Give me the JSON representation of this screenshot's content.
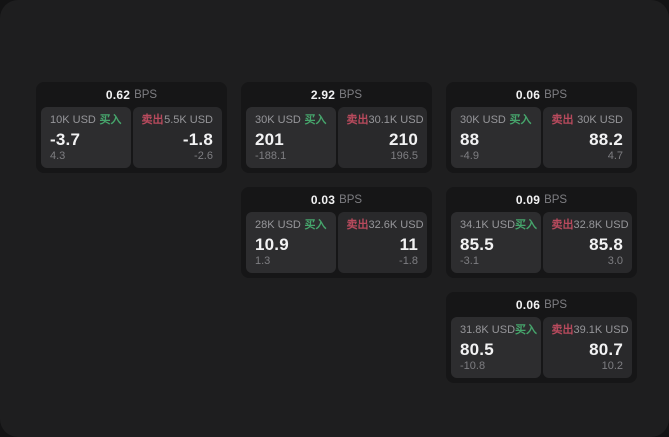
{
  "colors": {
    "outside-bg": "#131314",
    "page-bg": "#1e1e1f",
    "card-bg": "#161617",
    "panel-buy-bg": "#2d2d2f",
    "panel-sell-bg": "#29292b",
    "text-bright": "#f2f2f3",
    "text-muted": "#96969a",
    "text-dim": "#7e7e82",
    "buy": "#46a56c",
    "sell": "#b84a5d"
  },
  "labels": {
    "buy": "买入",
    "sell": "卖出",
    "bps_unit": "BPS"
  },
  "cards": [
    {
      "bps": "0.62",
      "buy": {
        "amount": "10K USD",
        "price": "-3.7",
        "sub": "4.3"
      },
      "sell": {
        "amount": "5.5K USD",
        "price": "-1.8",
        "sub": "-2.6"
      }
    },
    {
      "bps": "2.92",
      "buy": {
        "amount": "30K USD",
        "price": "201",
        "sub": "-188.1"
      },
      "sell": {
        "amount": "30.1K USD",
        "price": "210",
        "sub": "196.5"
      }
    },
    {
      "bps": "0.06",
      "buy": {
        "amount": "30K USD",
        "price": "88",
        "sub": "-4.9"
      },
      "sell": {
        "amount": "30K USD",
        "price": "88.2",
        "sub": "4.7"
      }
    },
    {
      "bps": "0.03",
      "buy": {
        "amount": "28K USD",
        "price": "10.9",
        "sub": "1.3"
      },
      "sell": {
        "amount": "32.6K USD",
        "price": "11",
        "sub": "-1.8"
      }
    },
    {
      "bps": "0.09",
      "buy": {
        "amount": "34.1K USD",
        "price": "85.5",
        "sub": "-3.1"
      },
      "sell": {
        "amount": "32.8K USD",
        "price": "85.8",
        "sub": "3.0"
      }
    },
    {
      "bps": "0.06",
      "buy": {
        "amount": "31.8K USD",
        "price": "80.5",
        "sub": "-10.8"
      },
      "sell": {
        "amount": "39.1K USD",
        "price": "80.7",
        "sub": "10.2"
      }
    }
  ]
}
